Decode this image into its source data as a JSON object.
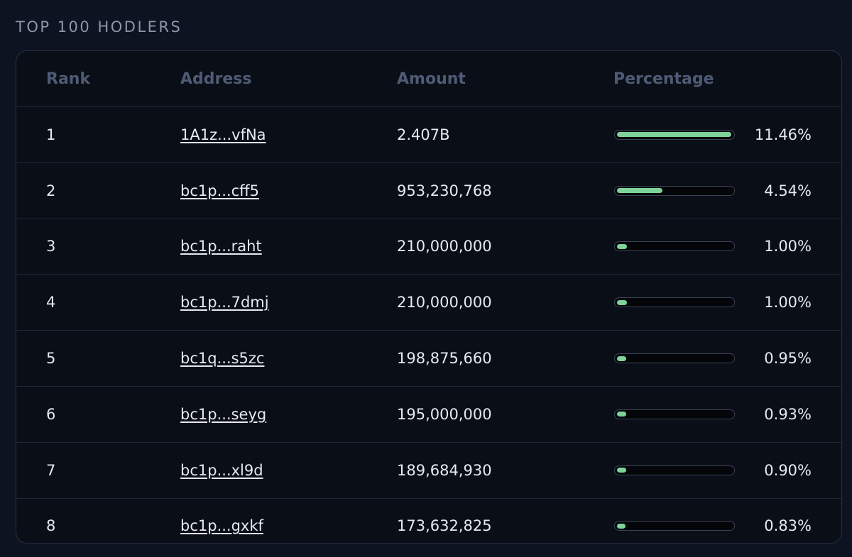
{
  "section": {
    "title": "TOP 100 HODLERS"
  },
  "table": {
    "headers": {
      "rank": "Rank",
      "address": "Address",
      "amount": "Amount",
      "percentage": "Percentage"
    },
    "rows": [
      {
        "rank": "1",
        "address": "1A1z...vfNa",
        "amount": "2.407B",
        "percentage": "11.46%",
        "bar_fill": 1.0
      },
      {
        "rank": "2",
        "address": "bc1p...cff5",
        "amount": "953,230,768",
        "percentage": "4.54%",
        "bar_fill": 0.396
      },
      {
        "rank": "3",
        "address": "bc1p...raht",
        "amount": "210,000,000",
        "percentage": "1.00%",
        "bar_fill": 0.087
      },
      {
        "rank": "4",
        "address": "bc1p...7dmj",
        "amount": "210,000,000",
        "percentage": "1.00%",
        "bar_fill": 0.087
      },
      {
        "rank": "5",
        "address": "bc1q...s5zc",
        "amount": "198,875,660",
        "percentage": "0.95%",
        "bar_fill": 0.083
      },
      {
        "rank": "6",
        "address": "bc1p...seyg",
        "amount": "195,000,000",
        "percentage": "0.93%",
        "bar_fill": 0.081
      },
      {
        "rank": "7",
        "address": "bc1p...xl9d",
        "amount": "189,684,930",
        "percentage": "0.90%",
        "bar_fill": 0.079
      },
      {
        "rank": "8",
        "address": "bc1p...gxkf",
        "amount": "173,632,825",
        "percentage": "0.83%",
        "bar_fill": 0.072
      }
    ]
  },
  "colors": {
    "background": "#0d1320",
    "card": "#0a0e16",
    "accent_bar": "#7ed29b",
    "header_text": "#4f5b76"
  }
}
